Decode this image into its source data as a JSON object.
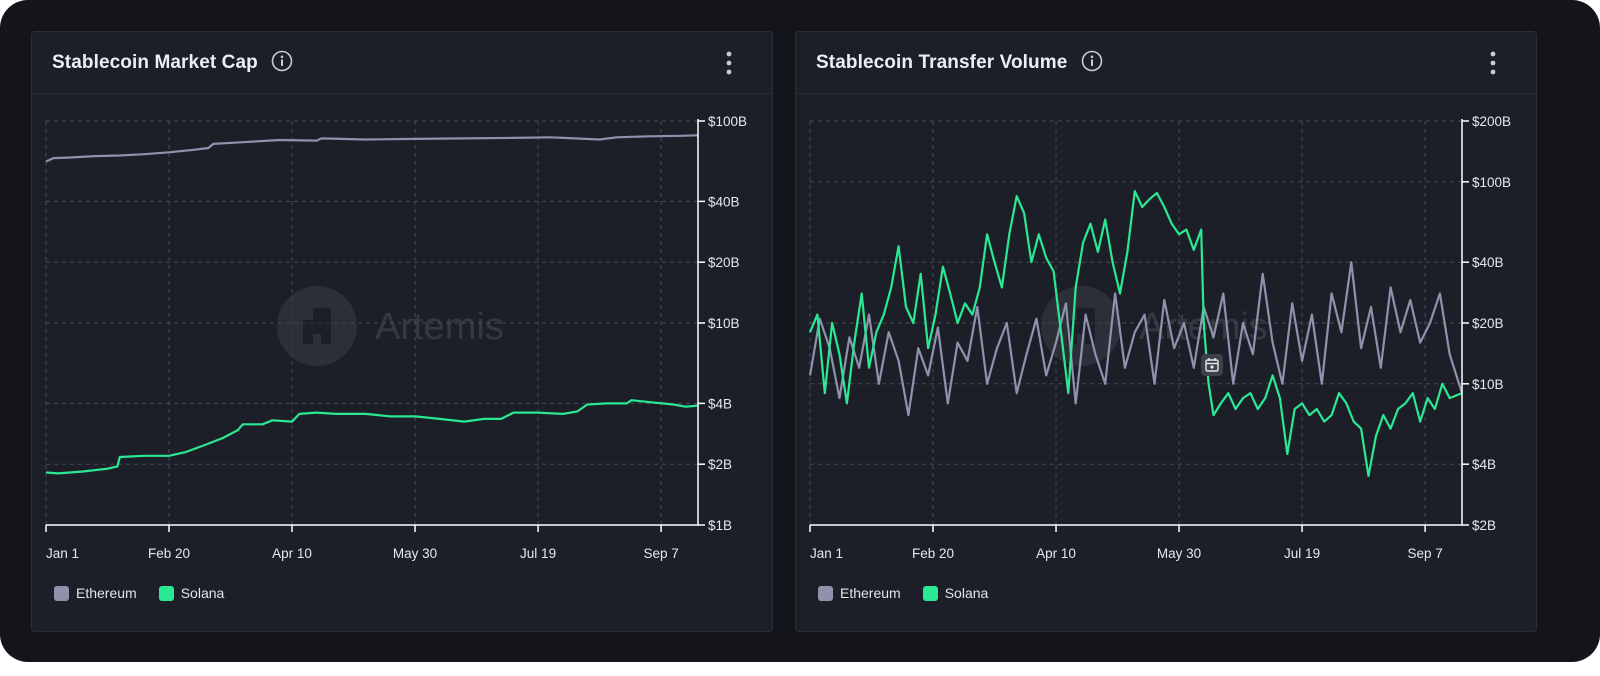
{
  "colors": {
    "ethereum": "#8e92ad",
    "solana": "#2be894",
    "background": "#14151b",
    "panel": "#1d1f28",
    "grid": "#474a55"
  },
  "watermark": {
    "label": "Artemis"
  },
  "left_panel": {
    "title": "Stablecoin Market Cap",
    "info_icon": "info-icon",
    "menu_icon": "kebab-menu-icon",
    "legend": [
      {
        "label": "Ethereum",
        "color": "#8e92ad"
      },
      {
        "label": "Solana",
        "color": "#2be894"
      }
    ]
  },
  "right_panel": {
    "title": "Stablecoin Transfer Volume",
    "info_icon": "info-icon",
    "menu_icon": "kebab-menu-icon",
    "overlay_icon": "calendar-icon",
    "legend": [
      {
        "label": "Ethereum",
        "color": "#8e92ad"
      },
      {
        "label": "Solana",
        "color": "#2be894"
      }
    ]
  },
  "chart_data": [
    {
      "type": "line",
      "title": "Stablecoin Market Cap",
      "x_tick_labels": [
        "Jan 1",
        "Feb 20",
        "Apr 10",
        "May 30",
        "Jul 19",
        "Sep 7"
      ],
      "x_tick_days": [
        0,
        50,
        100,
        150,
        200,
        250
      ],
      "x_range_days": [
        0,
        265
      ],
      "y_scale": "log",
      "ylim": [
        1,
        100
      ],
      "y_unit": "billions USD",
      "y_tick_values": [
        1,
        2,
        4,
        10,
        20,
        40,
        100
      ],
      "y_tick_labels": [
        "$1B",
        "$2B",
        "$4B",
        "$10B",
        "$20B",
        "$40B",
        "$100B"
      ],
      "grid": true,
      "legend_position": "bottom-left",
      "series": [
        {
          "name": "Ethereum",
          "color": "#8e92ad",
          "points": [
            [
              0,
              63
            ],
            [
              3,
              65.5
            ],
            [
              10,
              66
            ],
            [
              20,
              67
            ],
            [
              30,
              67.5
            ],
            [
              40,
              68.5
            ],
            [
              50,
              70
            ],
            [
              60,
              72
            ],
            [
              66,
              73.5
            ],
            [
              68,
              77
            ],
            [
              80,
              78.5
            ],
            [
              95,
              80.5
            ],
            [
              110,
              80
            ],
            [
              112,
              82
            ],
            [
              130,
              81
            ],
            [
              150,
              81.5
            ],
            [
              170,
              82
            ],
            [
              190,
              82.5
            ],
            [
              205,
              83
            ],
            [
              215,
              82
            ],
            [
              225,
              81
            ],
            [
              232,
              83
            ],
            [
              245,
              84
            ],
            [
              258,
              84.5
            ],
            [
              265,
              85
            ]
          ]
        },
        {
          "name": "Solana",
          "color": "#2be894",
          "points": [
            [
              0,
              1.82
            ],
            [
              5,
              1.8
            ],
            [
              15,
              1.84
            ],
            [
              25,
              1.9
            ],
            [
              29,
              1.95
            ],
            [
              30,
              2.17
            ],
            [
              40,
              2.2
            ],
            [
              50,
              2.2
            ],
            [
              57,
              2.3
            ],
            [
              65,
              2.5
            ],
            [
              72,
              2.7
            ],
            [
              78,
              2.95
            ],
            [
              80,
              3.15
            ],
            [
              88,
              3.15
            ],
            [
              92,
              3.3
            ],
            [
              100,
              3.25
            ],
            [
              103,
              3.55
            ],
            [
              110,
              3.6
            ],
            [
              118,
              3.55
            ],
            [
              130,
              3.55
            ],
            [
              140,
              3.45
            ],
            [
              150,
              3.45
            ],
            [
              160,
              3.35
            ],
            [
              170,
              3.25
            ],
            [
              178,
              3.35
            ],
            [
              185,
              3.35
            ],
            [
              190,
              3.6
            ],
            [
              200,
              3.6
            ],
            [
              210,
              3.55
            ],
            [
              216,
              3.65
            ],
            [
              220,
              3.95
            ],
            [
              228,
              4.0
            ],
            [
              236,
              4.0
            ],
            [
              238,
              4.15
            ],
            [
              246,
              4.05
            ],
            [
              255,
              3.95
            ],
            [
              260,
              3.85
            ],
            [
              265,
              3.9
            ]
          ]
        }
      ]
    },
    {
      "type": "line",
      "title": "Stablecoin Transfer Volume",
      "x_tick_labels": [
        "Jan 1",
        "Feb 20",
        "Apr 10",
        "May 30",
        "Jul 19",
        "Sep 7"
      ],
      "x_tick_days": [
        0,
        50,
        100,
        150,
        200,
        250
      ],
      "x_range_days": [
        0,
        265
      ],
      "y_scale": "log",
      "ylim": [
        2,
        200
      ],
      "y_unit": "billions USD",
      "y_tick_values": [
        2,
        4,
        10,
        20,
        40,
        100,
        200
      ],
      "y_tick_labels": [
        "$2B",
        "$4B",
        "$10B",
        "$20B",
        "$40B",
        "$100B",
        "$200B"
      ],
      "grid": true,
      "legend_position": "bottom-left",
      "series": [
        {
          "name": "Ethereum",
          "color": "#8e92ad",
          "points": [
            [
              0,
              11
            ],
            [
              4,
              21
            ],
            [
              8,
              15
            ],
            [
              12,
              8.5
            ],
            [
              16,
              17
            ],
            [
              20,
              12
            ],
            [
              24,
              22
            ],
            [
              28,
              10
            ],
            [
              32,
              18
            ],
            [
              36,
              13
            ],
            [
              40,
              7
            ],
            [
              44,
              15
            ],
            [
              48,
              11
            ],
            [
              52,
              19
            ],
            [
              56,
              8
            ],
            [
              60,
              16
            ],
            [
              64,
              13
            ],
            [
              68,
              24
            ],
            [
              72,
              10
            ],
            [
              76,
              15
            ],
            [
              80,
              20
            ],
            [
              84,
              9
            ],
            [
              88,
              14
            ],
            [
              92,
              21
            ],
            [
              96,
              11
            ],
            [
              100,
              16
            ],
            [
              104,
              25
            ],
            [
              108,
              8
            ],
            [
              112,
              22
            ],
            [
              116,
              14
            ],
            [
              120,
              10
            ],
            [
              124,
              28
            ],
            [
              128,
              12
            ],
            [
              132,
              18
            ],
            [
              136,
              22
            ],
            [
              140,
              10
            ],
            [
              144,
              26
            ],
            [
              148,
              15
            ],
            [
              152,
              20
            ],
            [
              156,
              12
            ],
            [
              160,
              24
            ],
            [
              164,
              17
            ],
            [
              168,
              28
            ],
            [
              172,
              10
            ],
            [
              176,
              20
            ],
            [
              180,
              14
            ],
            [
              184,
              35
            ],
            [
              188,
              16
            ],
            [
              192,
              10
            ],
            [
              196,
              25
            ],
            [
              200,
              13
            ],
            [
              204,
              22
            ],
            [
              208,
              10
            ],
            [
              212,
              28
            ],
            [
              216,
              18
            ],
            [
              220,
              40
            ],
            [
              224,
              15
            ],
            [
              228,
              24
            ],
            [
              232,
              12
            ],
            [
              236,
              30
            ],
            [
              240,
              18
            ],
            [
              244,
              26
            ],
            [
              248,
              16
            ],
            [
              252,
              20
            ],
            [
              256,
              28
            ],
            [
              260,
              14
            ],
            [
              265,
              9
            ]
          ]
        },
        {
          "name": "Solana",
          "color": "#2be894",
          "points": [
            [
              0,
              18
            ],
            [
              3,
              22
            ],
            [
              6,
              9
            ],
            [
              9,
              20
            ],
            [
              12,
              14
            ],
            [
              15,
              8
            ],
            [
              18,
              16
            ],
            [
              21,
              28
            ],
            [
              24,
              12
            ],
            [
              27,
              18
            ],
            [
              30,
              22
            ],
            [
              33,
              30
            ],
            [
              36,
              48
            ],
            [
              39,
              24
            ],
            [
              42,
              20
            ],
            [
              45,
              35
            ],
            [
              48,
              15
            ],
            [
              51,
              22
            ],
            [
              54,
              38
            ],
            [
              57,
              28
            ],
            [
              60,
              20
            ],
            [
              63,
              25
            ],
            [
              66,
              22
            ],
            [
              69,
              30
            ],
            [
              72,
              55
            ],
            [
              75,
              40
            ],
            [
              78,
              30
            ],
            [
              81,
              55
            ],
            [
              84,
              85
            ],
            [
              87,
              70
            ],
            [
              90,
              40
            ],
            [
              93,
              55
            ],
            [
              96,
              42
            ],
            [
              99,
              36
            ],
            [
              102,
              18
            ],
            [
              105,
              9
            ],
            [
              108,
              30
            ],
            [
              111,
              50
            ],
            [
              114,
              62
            ],
            [
              117,
              45
            ],
            [
              120,
              65
            ],
            [
              123,
              40
            ],
            [
              126,
              28
            ],
            [
              129,
              45
            ],
            [
              132,
              90
            ],
            [
              135,
              75
            ],
            [
              138,
              82
            ],
            [
              141,
              88
            ],
            [
              144,
              75
            ],
            [
              147,
              62
            ],
            [
              150,
              55
            ],
            [
              153,
              58
            ],
            [
              156,
              46
            ],
            [
              159,
              58
            ],
            [
              160,
              20
            ],
            [
              162,
              10
            ],
            [
              164,
              7
            ],
            [
              167,
              8
            ],
            [
              170,
              9
            ],
            [
              173,
              7.5
            ],
            [
              176,
              8.5
            ],
            [
              179,
              9
            ],
            [
              182,
              7.5
            ],
            [
              185,
              8.5
            ],
            [
              188,
              11
            ],
            [
              191,
              8.5
            ],
            [
              194,
              4.5
            ],
            [
              197,
              7.5
            ],
            [
              200,
              8
            ],
            [
              203,
              7
            ],
            [
              206,
              7.5
            ],
            [
              209,
              6.5
            ],
            [
              212,
              7
            ],
            [
              215,
              9
            ],
            [
              218,
              8
            ],
            [
              221,
              6.5
            ],
            [
              224,
              6
            ],
            [
              227,
              3.5
            ],
            [
              230,
              5.5
            ],
            [
              233,
              7
            ],
            [
              236,
              6
            ],
            [
              239,
              7.5
            ],
            [
              242,
              8
            ],
            [
              245,
              9
            ],
            [
              248,
              6.5
            ],
            [
              251,
              8.5
            ],
            [
              254,
              7.5
            ],
            [
              257,
              10
            ],
            [
              260,
              8.5
            ],
            [
              265,
              9
            ]
          ]
        }
      ]
    }
  ]
}
